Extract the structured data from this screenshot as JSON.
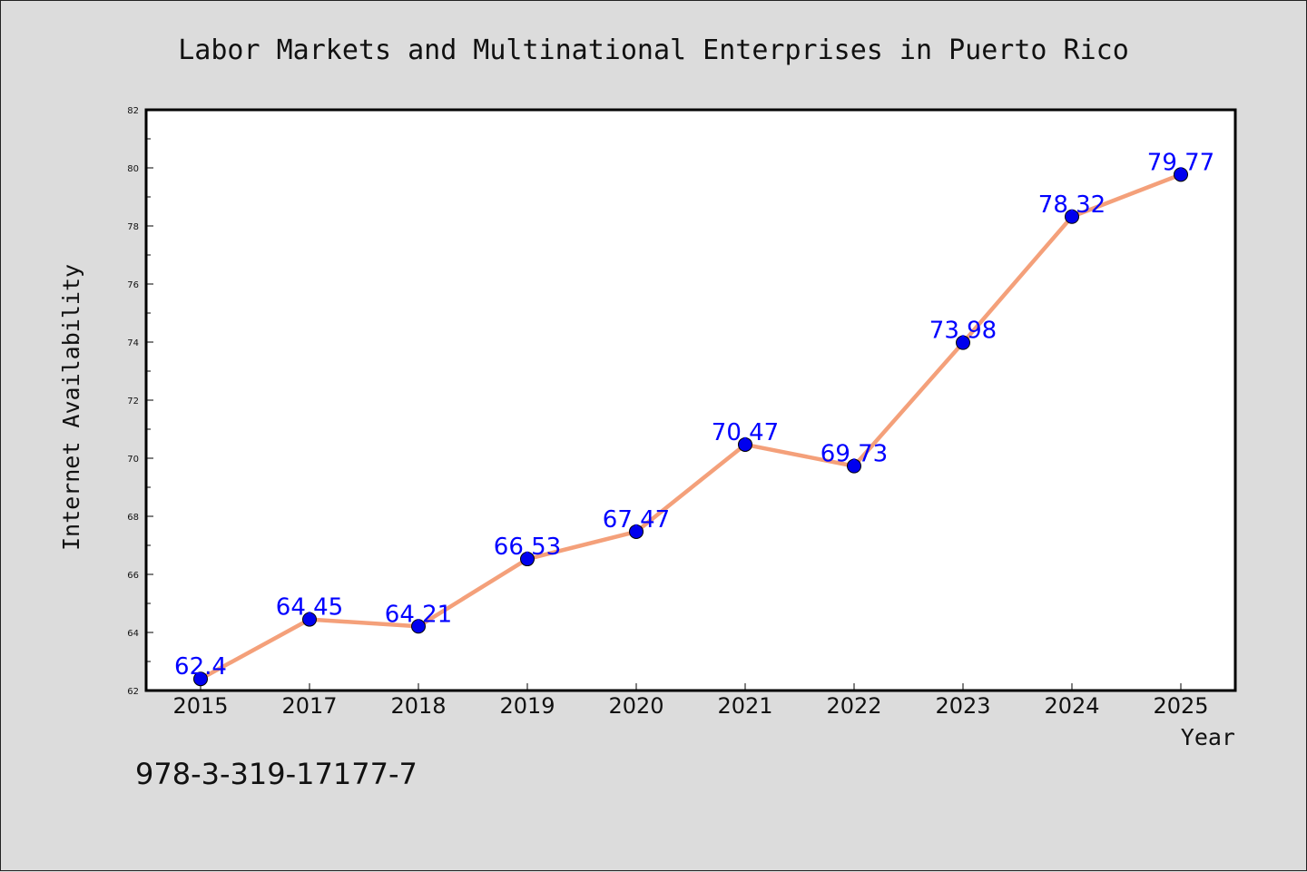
{
  "chart_data": {
    "type": "line",
    "title": "Labor Markets and Multinational Enterprises in Puerto Rico",
    "xlabel": "Year",
    "ylabel": "Internet Availability",
    "categories": [
      "2015",
      "2017",
      "2018",
      "2019",
      "2020",
      "2021",
      "2022",
      "2023",
      "2024",
      "2025"
    ],
    "series": [
      {
        "values": [
          62.4,
          64.45,
          64.21,
          66.53,
          67.47,
          70.47,
          69.73,
          73.98,
          78.32,
          79.77
        ],
        "data_labels": [
          "62.4",
          "64.45",
          "64.21",
          "66.53",
          "67.47",
          "70.47",
          "69.73",
          "73.98",
          "78.32",
          "79.77"
        ],
        "line_color": "#f4a07a",
        "marker_color": "#0000ee"
      }
    ],
    "ylim": [
      62,
      82
    ],
    "yticks": [
      "62",
      "64",
      "66",
      "68",
      "70",
      "72",
      "74",
      "76",
      "78",
      "80",
      "82"
    ],
    "grid": false,
    "legend": "none"
  },
  "footnote": "978-3-319-17177-7",
  "colors": {
    "background": "#dcdcdc",
    "plot_background": "#ffffff",
    "line": "#f4a07a",
    "marker": "#0000ee",
    "data_label": "#0000ff"
  }
}
